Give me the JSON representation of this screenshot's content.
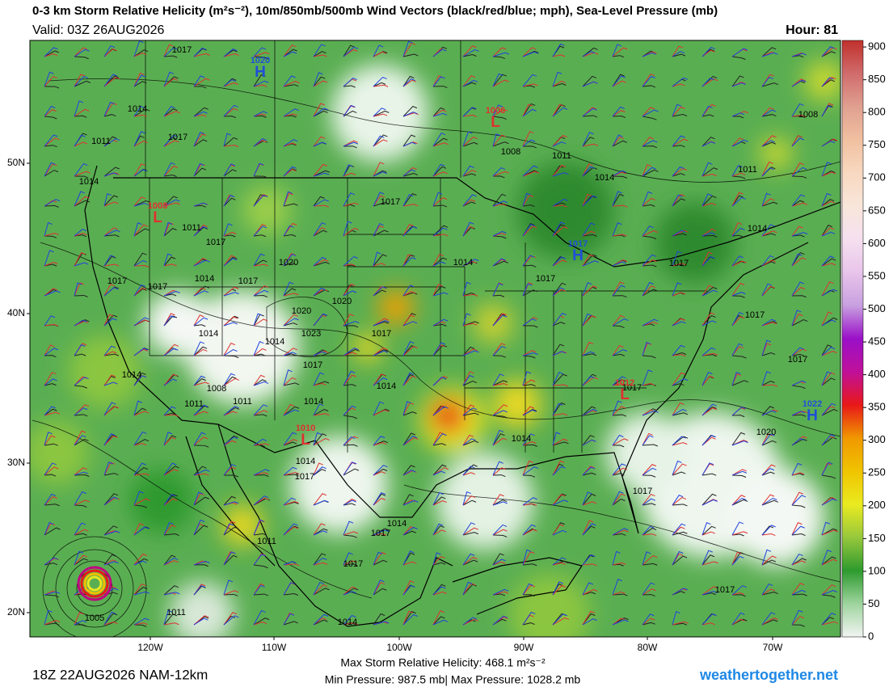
{
  "header": {
    "title": "0-3 km Storm Relative Helicity (m²s⁻²), 10m/850mb/500mb Wind Vectors (black/red/blue; mph), Sea-Level Pressure (mb)",
    "valid": "Valid: 03Z 26AUG2026",
    "hour": "Hour: 81"
  },
  "colorbar": {
    "range": [
      0,
      910
    ],
    "ticks": [
      900,
      850,
      800,
      750,
      700,
      650,
      600,
      550,
      500,
      450,
      400,
      350,
      300,
      250,
      200,
      150,
      100,
      50,
      0
    ],
    "colors": [
      "#c0302c",
      "#d06c6c",
      "#e0a090",
      "#f0c0a0",
      "#f8d8c0",
      "#f8e6da",
      "#f6e0f0",
      "#e8c4ea",
      "#c8a0e0",
      "#9a10c8",
      "#c0109a",
      "#e81818",
      "#f09800",
      "#f0c400",
      "#eaea20",
      "#96c83c",
      "#2e9a2e",
      "#9ed49e",
      "#f2f4f2"
    ]
  },
  "axes": {
    "lat_labels": [
      "50N",
      "40N",
      "30N",
      "20N"
    ],
    "lon_labels": [
      "120W",
      "110W",
      "100W",
      "90W",
      "80W",
      "70W"
    ]
  },
  "pressure_centers": [
    {
      "letter": "H",
      "value": "1020",
      "color": "#1f4fd8"
    },
    {
      "letter": "L",
      "value": "1006",
      "color": "#e03030"
    },
    {
      "letter": "L",
      "value": "1008",
      "color": "#e03030"
    },
    {
      "letter": "H",
      "value": "1017",
      "color": "#1f4fd8"
    },
    {
      "letter": "L",
      "value": "1012",
      "color": "#e03030"
    },
    {
      "letter": "H",
      "value": "1022",
      "color": "#1f4fd8"
    },
    {
      "letter": "L",
      "value": "1010",
      "color": "#e03030"
    }
  ],
  "isobar_labels": [
    "1017",
    "1014",
    "1011",
    "1017",
    "1014",
    "1011",
    "1017",
    "1020",
    "1014",
    "1017",
    "1017",
    "1017",
    "1020",
    "1020",
    "1023",
    "1014",
    "1014",
    "1017",
    "1017",
    "1014",
    "1008",
    "1011",
    "1011",
    "1014",
    "1014",
    "1014",
    "1017",
    "1014",
    "1017",
    "1008",
    "1011",
    "1014",
    "1014",
    "1017",
    "1014",
    "1017",
    "1017",
    "1017",
    "1017",
    "1020",
    "1017",
    "1014",
    "1017",
    "1011",
    "1017",
    "1005",
    "1011",
    "1014",
    "1017",
    "1008",
    "1011"
  ],
  "footer": {
    "run": "18Z 22AUG2026 NAM-12km",
    "max_helicity": "Max Storm Relative Helicity: 468.1 m²s⁻²",
    "pressure_range": "Min Pressure: 987.5 mb| Max Pressure: 1028.2 mb",
    "site": "weathertogether.net"
  }
}
